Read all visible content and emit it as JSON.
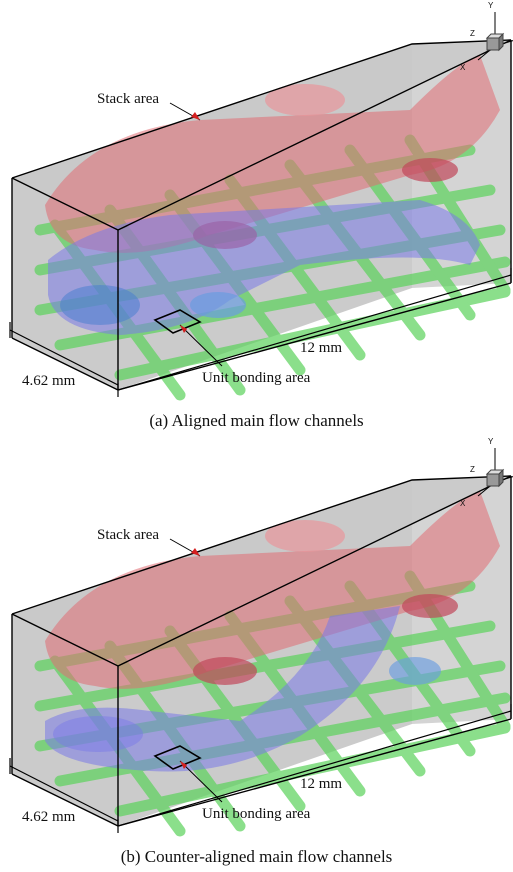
{
  "panels": [
    {
      "caption": "(a) Aligned main flow channels",
      "labels": {
        "stack": "Stack area",
        "bond": "Unit bonding area",
        "length": "12 mm",
        "width": "4.62 mm"
      },
      "axes": {
        "y": "Y",
        "z": "Z",
        "x": "X"
      }
    },
    {
      "caption": "(b) Counter-aligned main flow channels",
      "labels": {
        "stack": "Stack area",
        "bond": "Unit bonding area",
        "length": "12 mm",
        "width": "4.62 mm"
      },
      "axes": {
        "y": "Y",
        "z": "Z",
        "x": "X"
      }
    }
  ],
  "colors": {
    "box": "#c8c8c8",
    "edge": "#000000",
    "mesh": "#5fd35f",
    "red_channel": "#e06b73",
    "blue_channel": "#7a7ae8",
    "pointer": "#d42020"
  }
}
